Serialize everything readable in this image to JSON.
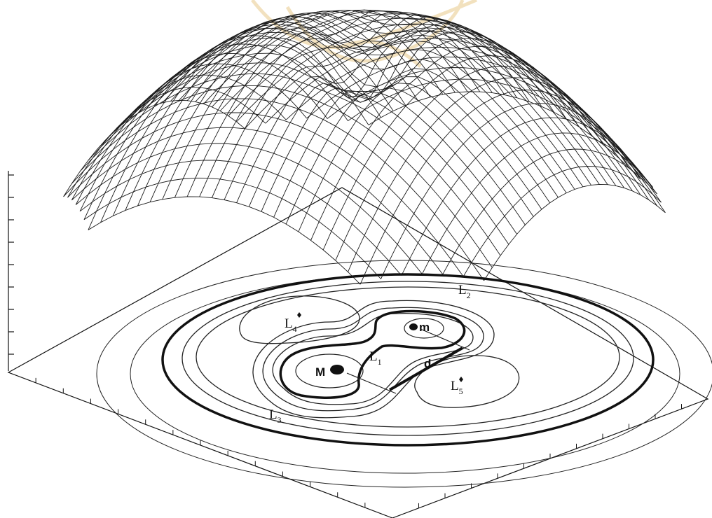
{
  "diagram": {
    "labels": {
      "L1": {
        "main": "L",
        "sub": "1"
      },
      "L2": {
        "main": "L",
        "sub": "2"
      },
      "L3": {
        "main": "L",
        "sub": "3"
      },
      "L4": {
        "main": "L",
        "sub": "4"
      },
      "L5": {
        "main": "L",
        "sub": "5"
      },
      "big_mass": "M",
      "small_mass": "m",
      "separation": "d"
    },
    "colors": {
      "ink": "#111111",
      "mesh": "#1a1a1a",
      "watermark": "#e8c98a"
    }
  }
}
